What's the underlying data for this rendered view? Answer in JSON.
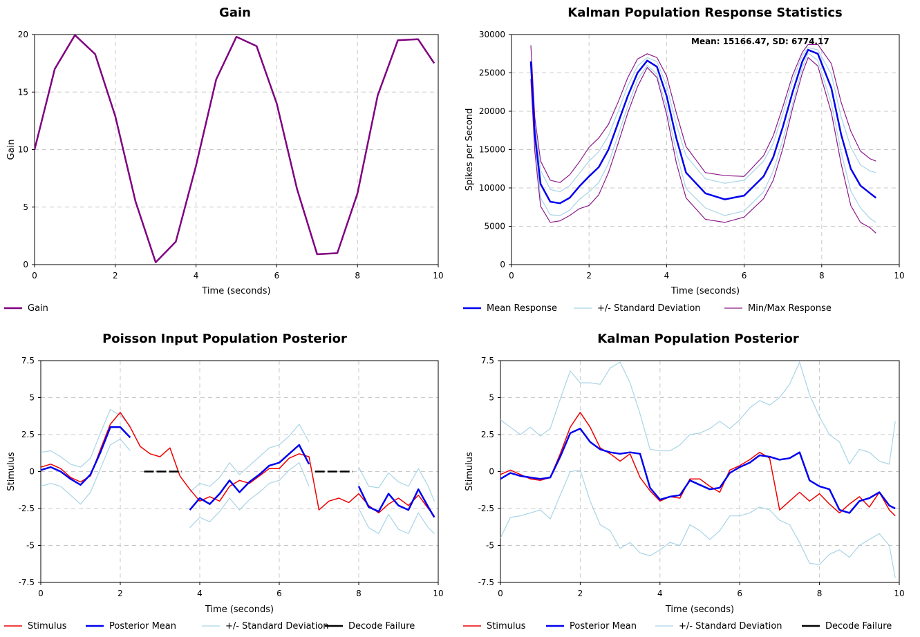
{
  "chart_data": [
    {
      "id": "gain",
      "type": "line",
      "title": "Gain",
      "xlabel": "Time (seconds)",
      "ylabel": "Gain",
      "xlim": [
        0,
        10
      ],
      "ylim": [
        0,
        20
      ],
      "xticks": [
        0,
        2,
        4,
        6,
        8,
        10
      ],
      "xtick_labels": [
        "0",
        "2",
        "4",
        "6",
        "8",
        "10"
      ],
      "yticks": [
        0,
        5,
        10,
        15,
        20
      ],
      "ytick_labels": [
        "0",
        "5",
        "10",
        "15",
        "20"
      ],
      "grid": true,
      "legend": "bottom",
      "series": [
        {
          "name": "Gain",
          "color": "#800080",
          "x": [
            0.0,
            0.5,
            1.0,
            1.5,
            2.0,
            2.5,
            3.0,
            3.5,
            4.0,
            4.5,
            5.0,
            5.5,
            6.0,
            6.5,
            7.0,
            7.5,
            8.0,
            8.5,
            9.0,
            9.5,
            9.9
          ],
          "y": [
            10.0,
            17.0,
            19.95,
            18.3,
            12.9,
            5.5,
            0.2,
            2.0,
            8.6,
            16.1,
            19.8,
            19.0,
            14.0,
            6.6,
            0.9,
            1.0,
            6.2,
            14.7,
            19.5,
            19.6,
            17.5
          ]
        }
      ]
    },
    {
      "id": "kalman-response",
      "type": "line",
      "title": "Kalman Population Response Statistics",
      "xlabel": "Time (seconds)",
      "ylabel": "Spikes per Second",
      "xlim": [
        0,
        10
      ],
      "ylim": [
        0,
        30000
      ],
      "xticks": [
        0,
        2,
        4,
        6,
        8,
        10
      ],
      "xtick_labels": [
        "0",
        "2",
        "4",
        "6",
        "8",
        "10"
      ],
      "yticks": [
        0,
        5000,
        10000,
        15000,
        20000,
        25000,
        30000
      ],
      "ytick_labels": [
        "0",
        "5000",
        "10000",
        "15000",
        "20000",
        "25000",
        "30000"
      ],
      "grid": true,
      "legend": "bottom",
      "annotation": "Mean: 15166.47, SD: 6774.17",
      "x": [
        0.5,
        0.6,
        0.75,
        1.0,
        1.25,
        1.5,
        1.75,
        2.0,
        2.25,
        2.5,
        2.75,
        3.0,
        3.25,
        3.5,
        3.75,
        4.0,
        4.25,
        4.5,
        5.0,
        5.5,
        6.0,
        6.5,
        6.75,
        7.0,
        7.25,
        7.5,
        7.65,
        7.9,
        8.25,
        8.5,
        8.75,
        9.0,
        9.25,
        9.4
      ],
      "series": [
        {
          "name": "Mean Response",
          "color": "#0000ee",
          "y": [
            26500,
            17000,
            10500,
            8200,
            8000,
            8700,
            10200,
            11500,
            12700,
            15000,
            18500,
            22000,
            25000,
            26600,
            25800,
            22000,
            16500,
            12000,
            9300,
            8500,
            9000,
            11500,
            14000,
            18000,
            22500,
            26500,
            28000,
            27500,
            23000,
            17000,
            12500,
            10300,
            9300,
            8700
          ]
        },
        {
          "name": "+/- Standard Deviation",
          "color": "#a8d4e6",
          "y_upper": [
            26500,
            18000,
            12300,
            9800,
            9500,
            10300,
            11900,
            13500,
            14700,
            16800,
            20000,
            23300,
            25900,
            27000,
            26500,
            23300,
            18300,
            14200,
            11200,
            10600,
            11000,
            13500,
            15800,
            19700,
            24000,
            27300,
            28300,
            28000,
            24800,
            19300,
            15300,
            13000,
            12200,
            12000
          ],
          "y_lower": [
            26500,
            16000,
            8700,
            6500,
            6400,
            7100,
            8500,
            9500,
            10700,
            13200,
            16900,
            20700,
            24100,
            26000,
            24800,
            20500,
            14700,
            9900,
            7400,
            6400,
            7000,
            9500,
            12200,
            16300,
            21000,
            25700,
            27600,
            26600,
            21000,
            14700,
            9600,
            7400,
            6000,
            5500
          ]
        },
        {
          "name": "Min/Max Response",
          "color": "#8b1a8b",
          "y_max": [
            28600,
            19200,
            13500,
            11000,
            10700,
            11700,
            13400,
            15300,
            16500,
            18300,
            21200,
            24400,
            26800,
            27500,
            27000,
            24600,
            19800,
            15400,
            12000,
            11600,
            11500,
            14200,
            16800,
            20600,
            24700,
            27700,
            28700,
            28700,
            26200,
            21200,
            17400,
            14800,
            13800,
            13500
          ],
          "y_min": [
            24200,
            14800,
            7600,
            5500,
            5700,
            6400,
            7300,
            7700,
            9100,
            12000,
            15800,
            19800,
            23200,
            25700,
            24400,
            19600,
            13300,
            8700,
            5900,
            5500,
            6200,
            8600,
            11000,
            15200,
            20400,
            25000,
            27000,
            25900,
            19800,
            13200,
            7700,
            5500,
            4800,
            4100
          ]
        }
      ]
    },
    {
      "id": "poisson-posterior",
      "type": "line",
      "title": "Poisson Input Population Posterior",
      "xlabel": "Time (seconds)",
      "ylabel": "Stimulus",
      "xlim": [
        0,
        10
      ],
      "ylim": [
        -7.5,
        7.5
      ],
      "xticks": [
        0,
        2,
        4,
        6,
        8,
        10
      ],
      "xtick_labels": [
        "0",
        "2",
        "4",
        "6",
        "8",
        "10"
      ],
      "yticks": [
        -7.5,
        -5,
        -2.5,
        0,
        2.5,
        5,
        7.5
      ],
      "ytick_labels": [
        "-7.5",
        "-5",
        "-2.5",
        "0",
        "2.5",
        "5",
        "7.5"
      ],
      "grid": true,
      "legend": "bottom",
      "x": [
        0.0,
        0.25,
        0.5,
        0.75,
        1.0,
        1.25,
        1.5,
        1.75,
        2.0,
        2.25,
        2.5,
        2.75,
        3.0,
        3.25,
        3.5,
        3.75,
        4.0,
        4.25,
        4.5,
        4.75,
        5.0,
        5.25,
        5.5,
        5.75,
        6.0,
        6.25,
        6.5,
        6.75,
        7.0,
        7.25,
        7.5,
        7.75,
        8.0,
        8.25,
        8.5,
        8.75,
        9.0,
        9.25,
        9.5,
        9.75,
        9.9
      ],
      "series": [
        {
          "name": "Stimulus",
          "color": "#ee0000",
          "y": [
            0.3,
            0.5,
            0.2,
            -0.4,
            -0.7,
            -0.3,
            1.5,
            3.2,
            4.0,
            3.0,
            1.7,
            1.2,
            1.0,
            1.6,
            -0.3,
            -1.2,
            -2.0,
            -1.7,
            -2.0,
            -1.0,
            -0.6,
            -0.8,
            -0.3,
            0.2,
            0.2,
            0.9,
            1.2,
            1.0,
            -2.6,
            -2.0,
            -1.8,
            -2.1,
            -1.5,
            -2.3,
            -2.8,
            -2.2,
            -1.8,
            -2.3,
            -1.6,
            -2.5,
            -3.0
          ]
        },
        {
          "name": "Posterior Mean",
          "color": "#0000ee",
          "y": [
            0.1,
            0.3,
            0.0,
            -0.5,
            -0.9,
            -0.2,
            1.3,
            3.0,
            3.0,
            2.3,
            null,
            null,
            null,
            null,
            null,
            -2.6,
            -1.8,
            -2.2,
            -1.5,
            -0.6,
            -1.4,
            -0.7,
            -0.2,
            0.4,
            0.6,
            1.2,
            1.8,
            0.5,
            null,
            null,
            null,
            null,
            -1.0,
            -2.4,
            -2.7,
            -1.5,
            -2.3,
            -2.6,
            -1.2,
            -2.4,
            -3.1
          ]
        },
        {
          "name": "+/- Standard Deviation",
          "color": "#a8d4e6",
          "y_upper": [
            1.3,
            1.4,
            1.0,
            0.5,
            0.3,
            0.9,
            2.6,
            4.2,
            3.8,
            3.1,
            null,
            null,
            null,
            null,
            null,
            -1.4,
            -0.8,
            -1.0,
            -0.4,
            0.6,
            -0.2,
            0.4,
            1.0,
            1.6,
            1.8,
            2.4,
            3.2,
            2.0,
            null,
            null,
            null,
            null,
            0.3,
            -1.0,
            -1.1,
            -0.1,
            -0.7,
            -1.0,
            0.2,
            -1.0,
            -2.0
          ],
          "y_lower": [
            -1.0,
            -0.8,
            -1.0,
            -1.6,
            -2.2,
            -1.4,
            0.2,
            1.8,
            2.2,
            1.4,
            null,
            null,
            null,
            null,
            null,
            -3.8,
            -3.1,
            -3.4,
            -2.7,
            -1.8,
            -2.6,
            -1.9,
            -1.4,
            -0.8,
            -0.6,
            0.1,
            0.6,
            -1.0,
            null,
            null,
            null,
            null,
            -2.5,
            -3.8,
            -4.2,
            -2.9,
            -3.9,
            -4.2,
            -2.8,
            -3.8,
            -4.2
          ]
        },
        {
          "name": "Decode Failure",
          "color": "#000000",
          "segments": [
            [
              2.6,
              3.55
            ],
            [
              6.9,
              7.85
            ]
          ],
          "y": 0
        }
      ]
    },
    {
      "id": "kalman-posterior",
      "type": "line",
      "title": "Kalman Population Posterior",
      "xlabel": "Time (seconds)",
      "ylabel": "Stimulus",
      "xlim": [
        0,
        10
      ],
      "ylim": [
        -7.5,
        7.5
      ],
      "xticks": [
        0,
        2,
        4,
        6,
        8,
        10
      ],
      "xtick_labels": [
        "0",
        "2",
        "4",
        "6",
        "8",
        "10"
      ],
      "yticks": [
        -7.5,
        -5,
        -2.5,
        0,
        2.5,
        5,
        7.5
      ],
      "ytick_labels": [
        "-7.5",
        "-5",
        "-2.5",
        "0",
        "2.5",
        "5",
        "7.5"
      ],
      "grid": true,
      "legend": "bottom",
      "x": [
        0.0,
        0.25,
        0.5,
        0.75,
        1.0,
        1.25,
        1.5,
        1.75,
        2.0,
        2.25,
        2.5,
        2.75,
        3.0,
        3.25,
        3.5,
        3.75,
        4.0,
        4.25,
        4.5,
        4.75,
        5.0,
        5.25,
        5.5,
        5.75,
        6.0,
        6.25,
        6.5,
        6.75,
        7.0,
        7.25,
        7.5,
        7.75,
        8.0,
        8.25,
        8.5,
        8.75,
        9.0,
        9.25,
        9.5,
        9.75,
        9.9
      ],
      "series": [
        {
          "name": "Stimulus",
          "color": "#ee0000",
          "y": [
            -0.2,
            0.1,
            -0.2,
            -0.5,
            -0.6,
            -0.4,
            1.2,
            3.0,
            4.0,
            3.0,
            1.6,
            1.2,
            0.7,
            1.2,
            -0.4,
            -1.3,
            -2.0,
            -1.7,
            -1.8,
            -0.5,
            -0.5,
            -1.0,
            -1.4,
            0.1,
            0.4,
            0.8,
            1.3,
            0.9,
            -2.6,
            -2.0,
            -1.4,
            -2.0,
            -1.5,
            -2.2,
            -2.8,
            -2.2,
            -1.7,
            -2.4,
            -1.4,
            -2.6,
            -3.0
          ]
        },
        {
          "name": "Posterior Mean",
          "color": "#0000ee",
          "y": [
            -0.5,
            -0.1,
            -0.3,
            -0.4,
            -0.5,
            -0.4,
            1.0,
            2.6,
            2.9,
            2.0,
            1.5,
            1.3,
            1.2,
            1.3,
            1.2,
            -1.1,
            -1.9,
            -1.7,
            -1.6,
            -0.6,
            -0.9,
            -1.2,
            -1.1,
            -0.1,
            0.3,
            0.6,
            1.1,
            1.0,
            0.8,
            0.9,
            1.3,
            -0.6,
            -1.0,
            -1.2,
            -2.6,
            -2.8,
            -2.0,
            -1.8,
            -1.4,
            -2.3,
            -2.5
          ]
        },
        {
          "name": "+/- Standard Deviation",
          "color": "#a8d4e6",
          "y_upper": [
            3.5,
            3.0,
            2.5,
            3.0,
            2.4,
            2.9,
            4.9,
            6.8,
            6.0,
            6.0,
            5.9,
            7.0,
            7.4,
            6.0,
            3.9,
            1.5,
            1.4,
            1.4,
            1.8,
            2.5,
            2.6,
            2.9,
            3.4,
            2.9,
            3.5,
            4.3,
            4.8,
            4.5,
            5.0,
            5.9,
            7.4,
            5.2,
            3.7,
            2.5,
            2.0,
            0.5,
            1.5,
            1.3,
            0.7,
            0.5,
            3.4
          ],
          "y_lower": [
            -4.5,
            -3.1,
            -3.0,
            -2.8,
            -2.6,
            -3.2,
            -1.6,
            0.0,
            0.1,
            -2.0,
            -3.6,
            -4.0,
            -5.2,
            -4.8,
            -5.5,
            -5.7,
            -5.3,
            -4.8,
            -5.0,
            -3.6,
            -4.0,
            -4.6,
            -4.0,
            -3.0,
            -3.0,
            -2.8,
            -2.4,
            -2.6,
            -3.3,
            -3.6,
            -4.8,
            -6.2,
            -6.3,
            -5.6,
            -5.3,
            -5.8,
            -5.0,
            -4.6,
            -4.2,
            -5.0,
            -7.2
          ]
        },
        {
          "name": "Decode Failure",
          "color": "#000000",
          "segments": [],
          "y": 0
        }
      ]
    }
  ]
}
